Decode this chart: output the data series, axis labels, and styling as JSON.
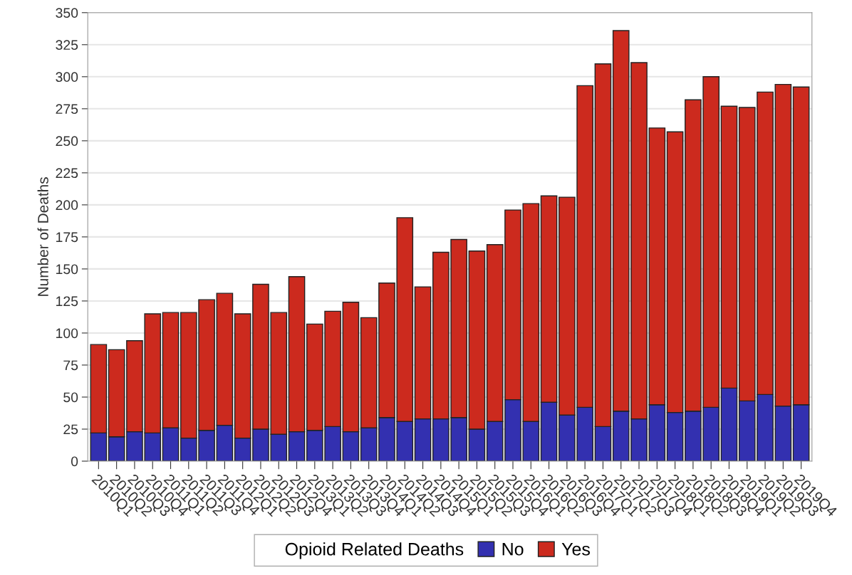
{
  "chart_data": {
    "type": "bar",
    "stacked": true,
    "ylabel": "Number of Deaths",
    "legend_title": "Opioid Related Deaths",
    "legend": "bottom",
    "grid": "y",
    "categories": [
      "2010Q1",
      "2010Q2",
      "2010Q3",
      "2010Q4",
      "2011Q1",
      "2011Q2",
      "2011Q3",
      "2011Q4",
      "2012Q1",
      "2012Q2",
      "2012Q3",
      "2012Q4",
      "2013Q1",
      "2013Q2",
      "2013Q3",
      "2013Q4",
      "2014Q1",
      "2014Q2",
      "2014Q3",
      "2014Q4",
      "2015Q1",
      "2015Q2",
      "2015Q3",
      "2015Q4",
      "2016Q1",
      "2016Q2",
      "2016Q3",
      "2016Q4",
      "2017Q1",
      "2017Q2",
      "2017Q3",
      "2017Q4",
      "2018Q1",
      "2018Q2",
      "2018Q3",
      "2018Q4",
      "2019Q1",
      "2019Q2",
      "2019Q3",
      "2019Q4"
    ],
    "series": [
      {
        "name": "No",
        "color": "#3330b0",
        "values": [
          22,
          19,
          23,
          22,
          26,
          18,
          24,
          28,
          18,
          25,
          21,
          23,
          24,
          27,
          23,
          26,
          34,
          31,
          33,
          33,
          34,
          25,
          31,
          48,
          31,
          46,
          36,
          42,
          27,
          39,
          33,
          44,
          38,
          39,
          42,
          57,
          47,
          52,
          43,
          44
        ]
      },
      {
        "name": "Yes",
        "color": "#cc2a1e",
        "values": [
          69,
          68,
          71,
          93,
          90,
          98,
          102,
          103,
          97,
          113,
          95,
          121,
          83,
          90,
          101,
          86,
          105,
          159,
          103,
          130,
          139,
          139,
          138,
          148,
          170,
          161,
          170,
          251,
          283,
          297,
          278,
          216,
          219,
          243,
          258,
          220,
          229,
          236,
          251,
          248
        ]
      }
    ],
    "ylim": [
      0,
      350
    ],
    "yticks": [
      0,
      25,
      50,
      75,
      100,
      125,
      150,
      175,
      200,
      225,
      250,
      275,
      300,
      325,
      350
    ]
  }
}
